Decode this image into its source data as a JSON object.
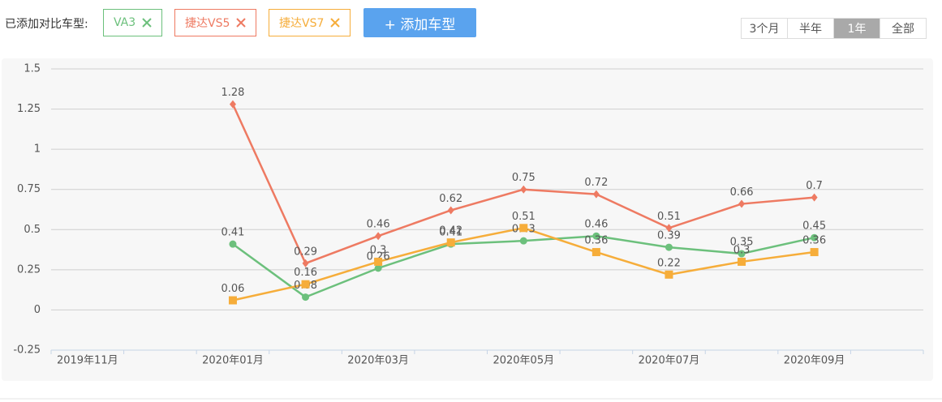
{
  "toolbar": {
    "label": "已添加对比车型:",
    "add_button": "+ 添加车型",
    "ranges": [
      "3个月",
      "半年",
      "1年",
      "全部"
    ],
    "active_range": 2
  },
  "chart_data": {
    "type": "line",
    "categories": [
      "2019年11月",
      null,
      "2020年01月",
      null,
      "2020年03月",
      null,
      "2020年05月",
      null,
      "2020年07月",
      null,
      "2020年09月",
      null
    ],
    "series": [
      {
        "name": "VA3",
        "color": "#6cc07c",
        "marker": "circle",
        "values": [
          null,
          null,
          0.41,
          0.08,
          0.26,
          0.41,
          0.43,
          0.46,
          0.39,
          0.35,
          0.45,
          null
        ]
      },
      {
        "name": "捷达VS5",
        "color": "#ee7a62",
        "marker": "diamond",
        "values": [
          null,
          null,
          1.28,
          0.29,
          0.46,
          0.62,
          0.75,
          0.72,
          0.51,
          0.66,
          0.7,
          null
        ]
      },
      {
        "name": "捷达VS7",
        "color": "#f6ad3a",
        "marker": "square",
        "values": [
          null,
          null,
          0.06,
          0.16,
          0.3,
          0.42,
          0.51,
          0.36,
          0.22,
          0.3,
          0.36,
          null
        ]
      }
    ],
    "ylim": [
      -0.25,
      1.5
    ],
    "yticks": [
      1.5,
      1.25,
      1,
      0.75,
      0.5,
      0.25,
      0,
      -0.25
    ],
    "grid": true
  }
}
